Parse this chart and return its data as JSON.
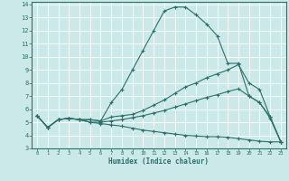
{
  "xlabel": "Humidex (Indice chaleur)",
  "xlim": [
    -0.5,
    23.5
  ],
  "ylim": [
    3,
    14.2
  ],
  "xticks": [
    0,
    1,
    2,
    3,
    4,
    5,
    6,
    7,
    8,
    9,
    10,
    11,
    12,
    13,
    14,
    15,
    16,
    17,
    18,
    19,
    20,
    21,
    22,
    23
  ],
  "yticks": [
    3,
    4,
    5,
    6,
    7,
    8,
    9,
    10,
    11,
    12,
    13,
    14
  ],
  "background_color": "#cce9ea",
  "grid_color": "#ffffff",
  "line_color": "#2a7068",
  "lines": [
    {
      "x": [
        0,
        1,
        2,
        3,
        4,
        5,
        6,
        7,
        8,
        9,
        10,
        11,
        12,
        13,
        14,
        15,
        16,
        17,
        18,
        19,
        20,
        21,
        22,
        23
      ],
      "y": [
        5.5,
        4.6,
        5.2,
        5.3,
        5.2,
        5.2,
        5.1,
        6.5,
        7.5,
        9.0,
        10.5,
        12.0,
        13.5,
        13.8,
        13.8,
        13.2,
        12.5,
        11.6,
        9.5,
        9.5,
        7.0,
        6.5,
        5.3,
        3.5
      ]
    },
    {
      "x": [
        0,
        1,
        2,
        3,
        4,
        5,
        6,
        7,
        8,
        9,
        10,
        11,
        12,
        13,
        14,
        15,
        16,
        17,
        18,
        19,
        20,
        21,
        22,
        23
      ],
      "y": [
        5.5,
        4.6,
        5.2,
        5.3,
        5.2,
        5.2,
        5.1,
        5.4,
        5.5,
        5.6,
        5.9,
        6.3,
        6.7,
        7.2,
        7.7,
        8.0,
        8.4,
        8.7,
        9.0,
        9.4,
        8.0,
        7.5,
        5.4,
        3.5
      ]
    },
    {
      "x": [
        0,
        1,
        2,
        3,
        4,
        5,
        6,
        7,
        8,
        9,
        10,
        11,
        12,
        13,
        14,
        15,
        16,
        17,
        18,
        19,
        20,
        21,
        22,
        23
      ],
      "y": [
        5.5,
        4.6,
        5.2,
        5.3,
        5.2,
        5.0,
        5.0,
        5.1,
        5.2,
        5.35,
        5.5,
        5.7,
        5.9,
        6.15,
        6.4,
        6.65,
        6.9,
        7.1,
        7.35,
        7.55,
        7.0,
        6.5,
        5.4,
        3.5
      ]
    },
    {
      "x": [
        0,
        1,
        2,
        3,
        4,
        5,
        6,
        7,
        8,
        9,
        10,
        11,
        12,
        13,
        14,
        15,
        16,
        17,
        18,
        19,
        20,
        21,
        22,
        23
      ],
      "y": [
        5.5,
        4.6,
        5.2,
        5.3,
        5.2,
        5.0,
        4.9,
        4.8,
        4.7,
        4.55,
        4.4,
        4.3,
        4.2,
        4.1,
        4.0,
        3.95,
        3.9,
        3.9,
        3.85,
        3.75,
        3.65,
        3.55,
        3.5,
        3.5
      ]
    }
  ]
}
